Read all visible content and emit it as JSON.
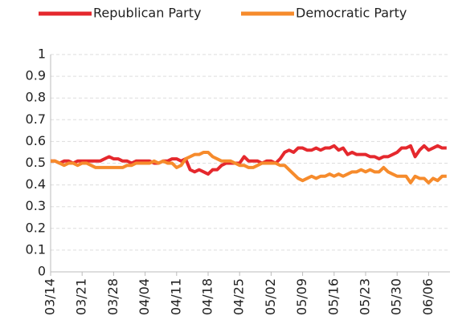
{
  "chart_data": {
    "type": "line",
    "categories": [
      "03/14",
      null,
      null,
      null,
      null,
      null,
      null,
      "03/21",
      null,
      null,
      null,
      null,
      null,
      null,
      "03/28",
      null,
      null,
      null,
      null,
      null,
      null,
      "04/04",
      null,
      null,
      null,
      null,
      null,
      null,
      "04/11",
      null,
      null,
      null,
      null,
      null,
      null,
      "04/18",
      null,
      null,
      null,
      null,
      null,
      null,
      "04/25",
      null,
      null,
      null,
      null,
      null,
      null,
      "05/02",
      null,
      null,
      null,
      null,
      null,
      null,
      "05/09",
      null,
      null,
      null,
      null,
      null,
      null,
      "05/16",
      null,
      null,
      null,
      null,
      null,
      null,
      "05/23",
      null,
      null,
      null,
      null,
      null,
      null,
      "05/30",
      null,
      null,
      null,
      null,
      null,
      null,
      "06/06",
      null,
      null,
      null,
      null
    ],
    "series": [
      {
        "name": "Republican Party",
        "color": "#e5282d",
        "values": [
          0.51,
          0.51,
          0.5,
          0.51,
          0.51,
          0.5,
          0.51,
          0.51,
          0.51,
          0.51,
          0.51,
          0.51,
          0.52,
          0.53,
          0.52,
          0.52,
          0.51,
          0.51,
          0.5,
          0.51,
          0.51,
          0.51,
          0.51,
          0.5,
          0.5,
          0.51,
          0.51,
          0.52,
          0.52,
          0.51,
          0.52,
          0.47,
          0.46,
          0.47,
          0.46,
          0.45,
          0.47,
          0.47,
          0.49,
          0.5,
          0.5,
          0.5,
          0.5,
          0.53,
          0.51,
          0.51,
          0.51,
          0.5,
          0.51,
          0.51,
          0.5,
          0.52,
          0.55,
          0.56,
          0.55,
          0.57,
          0.57,
          0.56,
          0.56,
          0.57,
          0.56,
          0.57,
          0.57,
          0.58,
          0.56,
          0.57,
          0.54,
          0.55,
          0.54,
          0.54,
          0.54,
          0.53,
          0.53,
          0.52,
          0.53,
          0.53,
          0.54,
          0.55,
          0.57,
          0.57,
          0.58,
          0.53,
          0.56,
          0.58,
          0.56,
          0.57,
          0.58,
          0.57,
          0.57
        ]
      },
      {
        "name": "Democratic Party",
        "color": "#f68b2c",
        "values": [
          0.51,
          0.51,
          0.5,
          0.49,
          0.5,
          0.5,
          0.49,
          0.5,
          0.5,
          0.49,
          0.48,
          0.48,
          0.48,
          0.48,
          0.48,
          0.48,
          0.48,
          0.49,
          0.49,
          0.5,
          0.5,
          0.5,
          0.5,
          0.51,
          0.5,
          0.51,
          0.5,
          0.5,
          0.48,
          0.49,
          0.52,
          0.53,
          0.54,
          0.54,
          0.55,
          0.55,
          0.53,
          0.52,
          0.51,
          0.51,
          0.51,
          0.5,
          0.49,
          0.49,
          0.48,
          0.48,
          0.49,
          0.5,
          0.5,
          0.5,
          0.5,
          0.49,
          0.49,
          0.47,
          0.45,
          0.43,
          0.42,
          0.43,
          0.44,
          0.43,
          0.44,
          0.44,
          0.45,
          0.44,
          0.45,
          0.44,
          0.45,
          0.46,
          0.46,
          0.47,
          0.46,
          0.47,
          0.46,
          0.46,
          0.48,
          0.46,
          0.45,
          0.44,
          0.44,
          0.44,
          0.41,
          0.44,
          0.43,
          0.43,
          0.41,
          0.43,
          0.42,
          0.44,
          0.44
        ]
      }
    ],
    "ylim": [
      0,
      1
    ],
    "yticks": [
      0,
      0.1,
      0.2,
      0.3,
      0.4,
      0.5,
      0.6,
      0.7,
      0.8,
      0.9,
      1
    ],
    "grid": true
  }
}
